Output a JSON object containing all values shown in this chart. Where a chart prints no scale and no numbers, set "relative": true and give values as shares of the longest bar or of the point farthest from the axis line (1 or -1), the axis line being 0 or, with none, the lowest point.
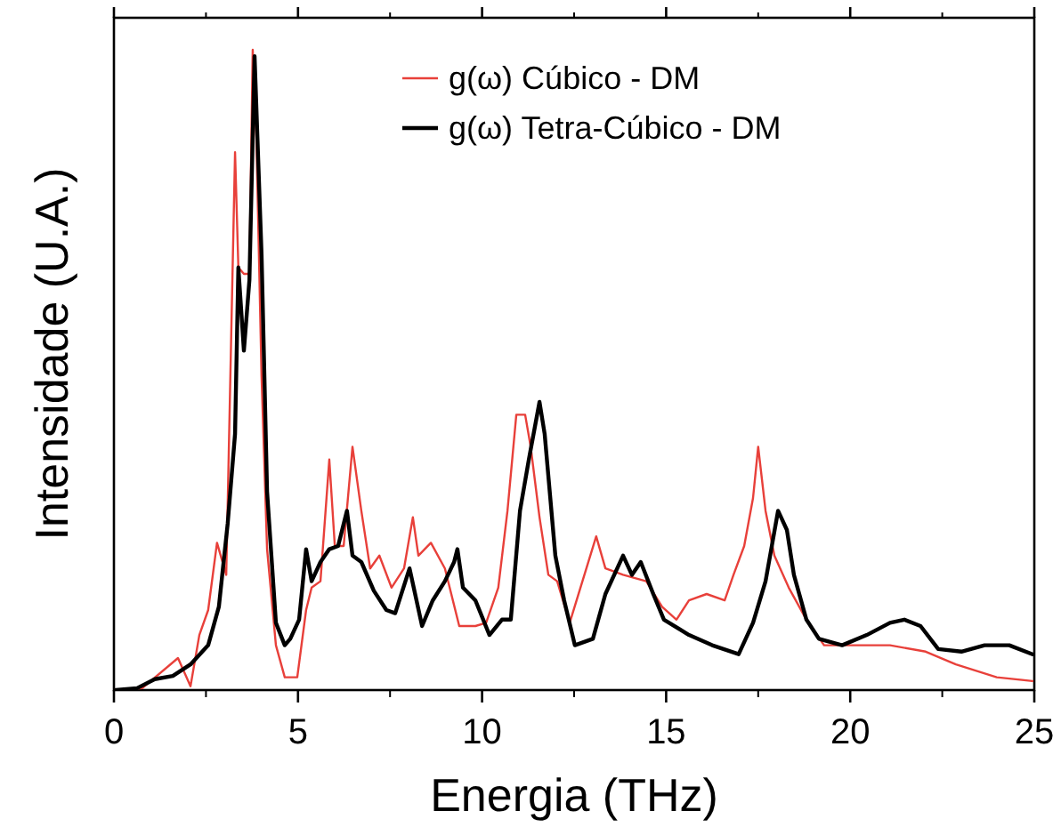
{
  "chart_data": {
    "type": "line",
    "xlabel": "Energia (THz)",
    "ylabel": "Intensidade (U.A.)",
    "relative": true,
    "xlim": [
      0,
      25
    ],
    "xticks": [
      0,
      5,
      10,
      15,
      20,
      25
    ],
    "legend": "top right",
    "grid": false,
    "marker": "none",
    "line_style": "solid",
    "series": [
      {
        "name": "g(ω) Cúbico - DM",
        "color": "#e8403a",
        "x": [
          0,
          0.77,
          1.74,
          2.08,
          2.32,
          2.56,
          2.8,
          3.05,
          3.29,
          3.38,
          3.53,
          3.68,
          3.77,
          3.87,
          4.01,
          4.16,
          4.4,
          4.64,
          4.98,
          5.22,
          5.37,
          5.61,
          5.85,
          6.0,
          6.24,
          6.48,
          6.72,
          6.96,
          7.21,
          7.54,
          7.88,
          8.12,
          8.27,
          8.61,
          8.99,
          9.38,
          9.82,
          10.11,
          10.44,
          10.69,
          10.93,
          11.17,
          11.32,
          11.56,
          11.8,
          12.04,
          12.38,
          13.1,
          13.35,
          13.83,
          14.46,
          14.89,
          15.28,
          15.62,
          16.1,
          16.59,
          16.83,
          17.12,
          17.36,
          17.5,
          17.7,
          17.94,
          18.33,
          18.81,
          19.29,
          19.97,
          21.08,
          22.05,
          22.87,
          23.98,
          24.95
        ],
        "values": [
          0,
          0.003,
          0.05,
          0.006,
          0.086,
          0.125,
          0.23,
          0.18,
          0.84,
          0.66,
          0.65,
          0.65,
          1.0,
          0.86,
          0.49,
          0.22,
          0.07,
          0.02,
          0.02,
          0.125,
          0.16,
          0.17,
          0.36,
          0.225,
          0.225,
          0.38,
          0.28,
          0.19,
          0.21,
          0.16,
          0.19,
          0.27,
          0.21,
          0.23,
          0.19,
          0.1,
          0.1,
          0.105,
          0.16,
          0.28,
          0.43,
          0.43,
          0.38,
          0.27,
          0.18,
          0.17,
          0.105,
          0.24,
          0.19,
          0.18,
          0.17,
          0.13,
          0.11,
          0.14,
          0.15,
          0.14,
          0.18,
          0.225,
          0.3,
          0.38,
          0.28,
          0.21,
          0.16,
          0.11,
          0.07,
          0.07,
          0.07,
          0.06,
          0.04,
          0.02,
          0.014
        ]
      },
      {
        "name": "g(ω) Tetra-Cúbico - DM",
        "color": "#000000",
        "x": [
          0.05,
          0.63,
          1.11,
          1.6,
          2.08,
          2.56,
          2.85,
          3.09,
          3.29,
          3.38,
          3.53,
          3.68,
          3.82,
          4.01,
          4.16,
          4.4,
          4.64,
          4.79,
          5.03,
          5.22,
          5.37,
          5.61,
          5.85,
          6.09,
          6.33,
          6.48,
          6.72,
          7.06,
          7.4,
          7.64,
          8.03,
          8.37,
          8.66,
          8.99,
          9.24,
          9.33,
          9.48,
          9.82,
          10.2,
          10.54,
          10.78,
          11.03,
          11.27,
          11.56,
          11.7,
          11.99,
          12.23,
          12.52,
          13.01,
          13.35,
          13.83,
          14.07,
          14.31,
          14.65,
          14.94,
          15.62,
          16.25,
          16.97,
          17.36,
          17.7,
          18.04,
          18.28,
          18.47,
          18.81,
          19.15,
          19.78,
          20.45,
          21.08,
          21.47,
          21.91,
          22.39,
          23.02,
          23.65,
          24.32,
          24.95
        ],
        "values": [
          0,
          0.003,
          0.017,
          0.022,
          0.04,
          0.07,
          0.13,
          0.26,
          0.4,
          0.66,
          0.53,
          0.64,
          0.99,
          0.68,
          0.31,
          0.105,
          0.07,
          0.08,
          0.11,
          0.22,
          0.17,
          0.2,
          0.22,
          0.225,
          0.28,
          0.21,
          0.2,
          0.155,
          0.125,
          0.12,
          0.19,
          0.1,
          0.14,
          0.17,
          0.2,
          0.22,
          0.16,
          0.14,
          0.086,
          0.11,
          0.11,
          0.28,
          0.36,
          0.45,
          0.4,
          0.21,
          0.14,
          0.07,
          0.08,
          0.15,
          0.21,
          0.18,
          0.2,
          0.15,
          0.11,
          0.086,
          0.07,
          0.056,
          0.105,
          0.17,
          0.28,
          0.25,
          0.18,
          0.11,
          0.08,
          0.07,
          0.086,
          0.105,
          0.11,
          0.1,
          0.064,
          0.06,
          0.07,
          0.07,
          0.056
        ]
      }
    ]
  }
}
